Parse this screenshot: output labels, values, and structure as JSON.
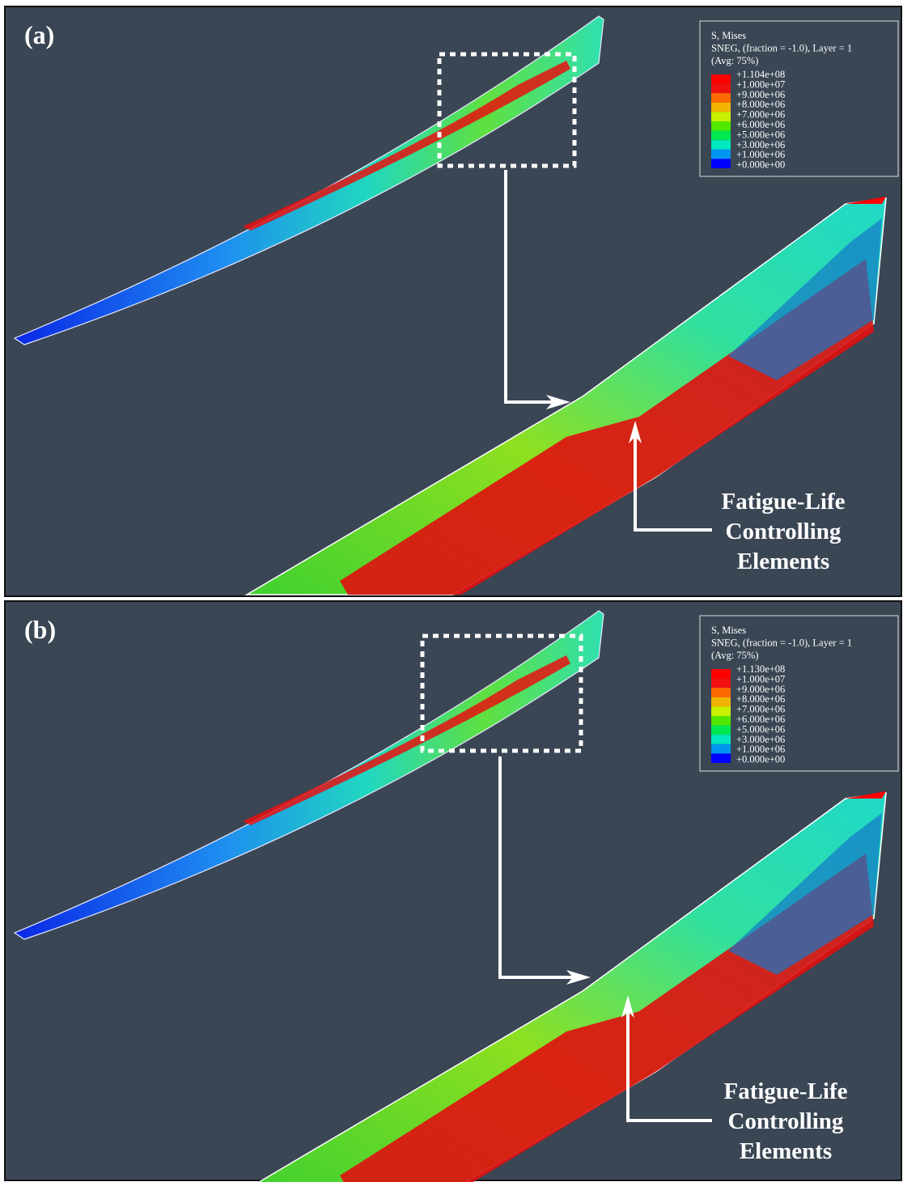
{
  "panels": [
    {
      "label": "(a)",
      "legend": {
        "title": [
          "S, Mises",
          "SNEG, (fraction = -1.0), Layer = 1",
          "(Avg: 75%)"
        ],
        "values": [
          "+1.104e+08",
          "+1.000e+07",
          "+9.000e+06",
          "+8.000e+06",
          "+7.000e+06",
          "+6.000e+06",
          "+5.000e+06",
          "+3.000e+06",
          "+1.000e+06",
          "+0.000e+00"
        ]
      },
      "annotation": [
        "Fatigue-Life",
        "Controlling",
        "Elements"
      ]
    },
    {
      "label": "(b)",
      "legend": {
        "title": [
          "S, Mises",
          "SNEG, (fraction = -1.0), Layer = 1",
          "(Avg: 75%)"
        ],
        "values": [
          "+1.130e+08",
          "+1.000e+07",
          "+9.000e+06",
          "+8.000e+06",
          "+7.000e+06",
          "+6.000e+06",
          "+5.000e+06",
          "+3.000e+06",
          "+1.000e+06",
          "+0.000e+00"
        ]
      },
      "annotation": [
        "Fatigue-Life",
        "Controlling",
        "Elements"
      ]
    }
  ]
}
